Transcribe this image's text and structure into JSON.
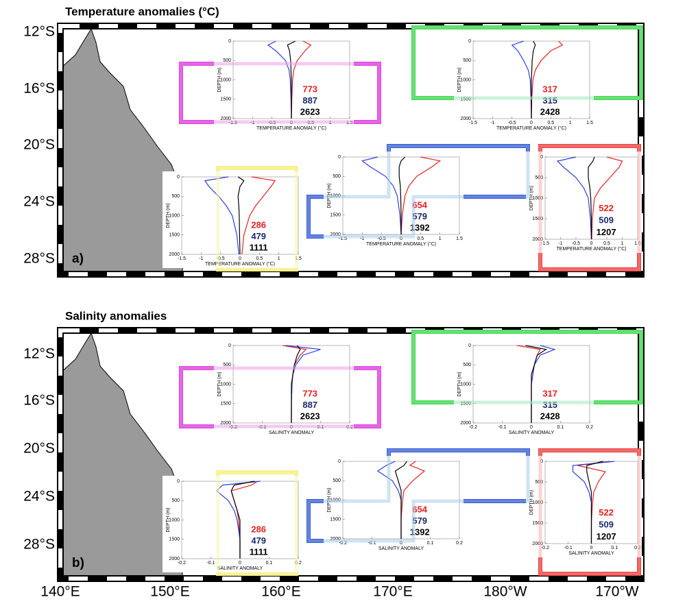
{
  "lon_labels": [
    "140°E",
    "150°E",
    "160°E",
    "170°E",
    "180°W",
    "170°W"
  ],
  "ylabel": "DEPTH (m)",
  "ylim": [
    0,
    2000
  ],
  "yticks": [
    0,
    500,
    1000,
    1500,
    2000
  ],
  "depths": [
    0,
    100,
    250,
    500,
    750,
    1000,
    1500,
    2000
  ],
  "count_colors": [
    "#e8201f",
    "#1b2a6b",
    "#000000"
  ],
  "panels": [
    {
      "title": "Temperature anomalies (°C)",
      "letter": "a)",
      "lat_labels": [
        "12°S",
        "16°S",
        "20°S",
        "24°S",
        "28°S"
      ],
      "xlabel": "TEMPERATURE ANOMALY (°C)",
      "xlim": [
        -1.5,
        1.5
      ],
      "xticks": [
        -1.5,
        -1,
        -0.5,
        0,
        0.5,
        1,
        1.5
      ],
      "insets": [
        {
          "counts": [
            773,
            887,
            2623
          ],
          "profiles": [
            {
              "color": "#e8201f",
              "values": [
                0.3,
                0.5,
                0.35,
                0.15,
                0.06,
                0.03,
                0.01,
                0
              ]
            },
            {
              "color": "#2b3fe0",
              "values": [
                -0.4,
                -0.6,
                -0.4,
                -0.15,
                -0.06,
                -0.03,
                -0.01,
                0
              ]
            },
            {
              "color": "#000000",
              "values": [
                0.1,
                -0.1,
                -0.05,
                -0.02,
                -0.01,
                0,
                0,
                0
              ]
            }
          ]
        },
        {
          "counts": [
            317,
            315,
            2428
          ],
          "profiles": [
            {
              "color": "#e8201f",
              "values": [
                0.7,
                0.8,
                0.5,
                0.25,
                0.1,
                0.04,
                0.01,
                0
              ]
            },
            {
              "color": "#2b3fe0",
              "values": [
                -0.2,
                -0.5,
                -0.35,
                -0.2,
                -0.08,
                -0.03,
                -0.01,
                0
              ]
            },
            {
              "color": "#000000",
              "values": [
                0.05,
                0.1,
                0.05,
                0.02,
                0.01,
                0,
                0,
                0
              ]
            }
          ]
        },
        {
          "counts": [
            286,
            479,
            1111
          ],
          "profiles": [
            {
              "color": "#e8201f",
              "values": [
                0.3,
                0.9,
                0.8,
                0.6,
                0.4,
                0.25,
                0.1,
                0.05
              ]
            },
            {
              "color": "#2b3fe0",
              "values": [
                -0.3,
                -0.9,
                -0.8,
                -0.55,
                -0.35,
                -0.2,
                -0.08,
                -0.03
              ]
            },
            {
              "color": "#000000",
              "values": [
                -0.05,
                0.1,
                0,
                -0.05,
                -0.03,
                -0.02,
                -0.01,
                0
              ]
            }
          ]
        },
        {
          "counts": [
            654,
            579,
            1392
          ],
          "profiles": [
            {
              "color": "#e8201f",
              "values": [
                0.5,
                1.0,
                0.8,
                0.4,
                0.2,
                0.1,
                0.03,
                0
              ]
            },
            {
              "color": "#2b3fe0",
              "values": [
                -0.6,
                -1.0,
                -0.8,
                -0.4,
                -0.2,
                -0.1,
                -0.03,
                0
              ]
            },
            {
              "color": "#000000",
              "values": [
                0.1,
                0,
                -0.05,
                -0.05,
                -0.02,
                -0.01,
                0,
                0
              ]
            }
          ]
        },
        {
          "counts": [
            522,
            509,
            1207
          ],
          "profiles": [
            {
              "color": "#e8201f",
              "values": [
                0.5,
                1.0,
                0.9,
                0.6,
                0.3,
                0.1,
                0.03,
                0.01
              ]
            },
            {
              "color": "#2b3fe0",
              "values": [
                -0.5,
                -1.1,
                -0.9,
                -0.5,
                -0.25,
                -0.1,
                -0.03,
                0
              ]
            },
            {
              "color": "#000000",
              "values": [
                0.1,
                0.05,
                -0.1,
                -0.1,
                -0.05,
                -0.02,
                0,
                0
              ]
            }
          ]
        }
      ]
    },
    {
      "title": "Salinity anomalies",
      "letter": "b)",
      "lat_labels": [
        "12°S",
        "16°S",
        "20°S",
        "24°S",
        "28°S"
      ],
      "xlabel": "SALINITY ANOMALY",
      "xlim": [
        -0.2,
        0.2
      ],
      "xticks": [
        -0.2,
        -0.1,
        0,
        0.1,
        0.2
      ],
      "insets": [
        {
          "counts": [
            773,
            887,
            2623
          ],
          "profiles": [
            {
              "color": "#e8201f",
              "values": [
                -0.03,
                0.05,
                0.03,
                0.01,
                0.005,
                0.002,
                0,
                0
              ]
            },
            {
              "color": "#2b3fe0",
              "values": [
                -0.02,
                0.1,
                0.04,
                0.015,
                0.005,
                0.002,
                0,
                0
              ]
            },
            {
              "color": "#000000",
              "values": [
                0.02,
                0.03,
                0.02,
                0.01,
                0.005,
                0,
                0,
                0
              ]
            }
          ]
        },
        {
          "counts": [
            317,
            315,
            2428
          ],
          "profiles": [
            {
              "color": "#e8201f",
              "values": [
                -0.05,
                0.03,
                0.02,
                0.01,
                0.005,
                0,
                0,
                0
              ]
            },
            {
              "color": "#2b3fe0",
              "values": [
                0.03,
                0.08,
                0.03,
                0.01,
                0.005,
                0,
                0,
                0
              ]
            },
            {
              "color": "#000000",
              "values": [
                -0.02,
                0.05,
                0.02,
                0.01,
                0,
                0,
                0,
                0
              ]
            }
          ]
        },
        {
          "counts": [
            286,
            479,
            1111
          ],
          "profiles": [
            {
              "color": "#e8201f",
              "values": [
                0.06,
                0.04,
                -0.03,
                -0.02,
                -0.01,
                -0.005,
                0,
                0
              ]
            },
            {
              "color": "#2b3fe0",
              "values": [
                0.07,
                -0.06,
                -0.08,
                -0.04,
                -0.02,
                -0.01,
                0,
                0
              ]
            },
            {
              "color": "#000000",
              "values": [
                0.05,
                -0.02,
                -0.03,
                -0.02,
                -0.01,
                0,
                0,
                0
              ]
            }
          ]
        },
        {
          "counts": [
            654,
            579,
            1392
          ],
          "profiles": [
            {
              "color": "#e8201f",
              "values": [
                0.05,
                0.03,
                0.08,
                0.04,
                0.01,
                0.005,
                0,
                0
              ]
            },
            {
              "color": "#2b3fe0",
              "values": [
                -0.02,
                -0.05,
                -0.08,
                -0.03,
                -0.01,
                0,
                0,
                0
              ]
            },
            {
              "color": "#000000",
              "values": [
                0.02,
                0.01,
                -0.02,
                -0.01,
                0,
                0,
                0,
                0
              ]
            }
          ]
        },
        {
          "counts": [
            522,
            509,
            1207
          ],
          "profiles": [
            {
              "color": "#e8201f",
              "values": [
                0.08,
                -0.06,
                0.06,
                0.03,
                0.01,
                0.005,
                0,
                0
              ]
            },
            {
              "color": "#2b3fe0",
              "values": [
                0.1,
                -0.08,
                -0.08,
                -0.03,
                -0.01,
                0,
                0,
                0
              ]
            },
            {
              "color": "#000000",
              "values": [
                0.05,
                -0.02,
                -0.02,
                -0.01,
                0,
                0,
                0,
                0
              ]
            }
          ]
        }
      ]
    }
  ]
}
